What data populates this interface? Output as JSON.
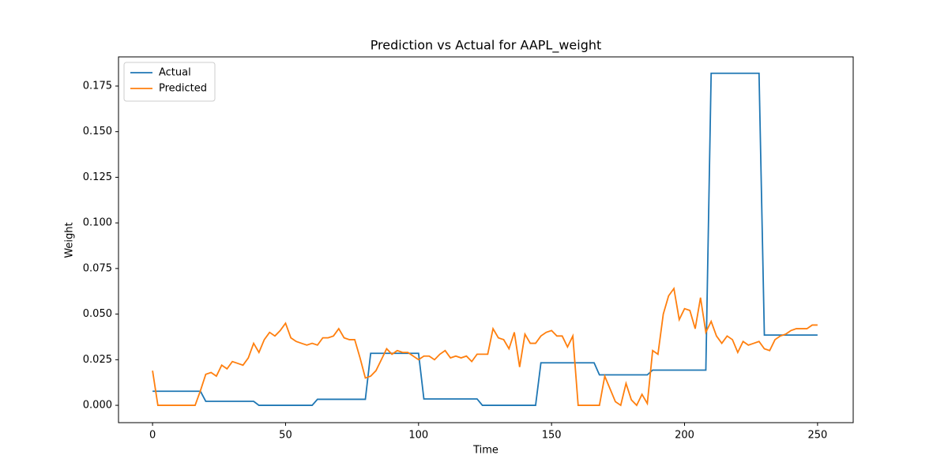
{
  "chart_data": {
    "type": "line",
    "title": "Prediction vs Actual for AAPL_weight",
    "x_label": "Time",
    "y_label": "Weight",
    "x": [
      0,
      2,
      4,
      6,
      8,
      10,
      12,
      14,
      16,
      18,
      20,
      22,
      24,
      26,
      28,
      30,
      32,
      34,
      36,
      38,
      40,
      42,
      44,
      46,
      48,
      50,
      52,
      54,
      56,
      58,
      60,
      62,
      64,
      66,
      68,
      70,
      72,
      74,
      76,
      78,
      80,
      82,
      84,
      86,
      88,
      90,
      92,
      94,
      96,
      98,
      100,
      102,
      104,
      106,
      108,
      110,
      112,
      114,
      116,
      118,
      120,
      122,
      124,
      126,
      128,
      130,
      132,
      134,
      136,
      138,
      140,
      142,
      144,
      146,
      148,
      150,
      152,
      154,
      156,
      158,
      160,
      162,
      164,
      166,
      168,
      170,
      172,
      174,
      176,
      178,
      180,
      182,
      184,
      186,
      188,
      190,
      192,
      194,
      196,
      198,
      200,
      202,
      204,
      206,
      208,
      210,
      212,
      214,
      216,
      218,
      220,
      222,
      224,
      226,
      228,
      230,
      232,
      234,
      236,
      238,
      240,
      242,
      244,
      246,
      248,
      250
    ],
    "series": [
      {
        "name": "Actual",
        "color": "#1f77b4",
        "values": [
          0.0077,
          0.0077,
          0.0077,
          0.0077,
          0.0077,
          0.0077,
          0.0077,
          0.0077,
          0.0077,
          0.0077,
          0.0022,
          0.0022,
          0.0022,
          0.0022,
          0.0022,
          0.0022,
          0.0022,
          0.0022,
          0.0022,
          0.0022,
          0,
          0,
          0,
          0,
          0,
          0,
          0,
          0,
          0,
          0,
          0,
          0.0033,
          0.0033,
          0.0033,
          0.0033,
          0.0033,
          0.0033,
          0.0033,
          0.0033,
          0.0033,
          0.0033,
          0.0285,
          0.0285,
          0.0285,
          0.0285,
          0.0285,
          0.0285,
          0.0285,
          0.0285,
          0.0285,
          0.0285,
          0.0035,
          0.0035,
          0.0035,
          0.0035,
          0.0035,
          0.0035,
          0.0035,
          0.0035,
          0.0035,
          0.0035,
          0.0035,
          0,
          0,
          0,
          0,
          0,
          0,
          0,
          0,
          0,
          0,
          0,
          0.0233,
          0.0233,
          0.0233,
          0.0233,
          0.0233,
          0.0233,
          0.0233,
          0.0233,
          0.0233,
          0.0233,
          0.0233,
          0.0167,
          0.0167,
          0.0167,
          0.0167,
          0.0167,
          0.0167,
          0.0167,
          0.0167,
          0.0167,
          0.0167,
          0.0193,
          0.0193,
          0.0193,
          0.0193,
          0.0193,
          0.0193,
          0.0193,
          0.0193,
          0.0193,
          0.0193,
          0.0193,
          0.182,
          0.182,
          0.182,
          0.182,
          0.182,
          0.182,
          0.182,
          0.182,
          0.182,
          0.182,
          0.0385,
          0.0385,
          0.0385,
          0.0385,
          0.0385,
          0.0385,
          0.0385,
          0.0385,
          0.0385,
          0.0385,
          0.0385
        ]
      },
      {
        "name": "Predicted",
        "color": "#ff7f0e",
        "values": [
          0.019,
          0,
          0,
          0,
          0,
          0,
          0,
          0,
          0,
          0.008,
          0.017,
          0.018,
          0.016,
          0.022,
          0.02,
          0.024,
          0.023,
          0.022,
          0.026,
          0.034,
          0.029,
          0.036,
          0.04,
          0.038,
          0.041,
          0.045,
          0.037,
          0.035,
          0.034,
          0.033,
          0.034,
          0.033,
          0.037,
          0.037,
          0.038,
          0.042,
          0.037,
          0.036,
          0.036,
          0.026,
          0.015,
          0.016,
          0.019,
          0.025,
          0.031,
          0.028,
          0.03,
          0.029,
          0.029,
          0.027,
          0.025,
          0.027,
          0.027,
          0.025,
          0.028,
          0.03,
          0.026,
          0.027,
          0.026,
          0.027,
          0.024,
          0.028,
          0.028,
          0.028,
          0.042,
          0.037,
          0.036,
          0.031,
          0.04,
          0.021,
          0.039,
          0.034,
          0.034,
          0.038,
          0.04,
          0.041,
          0.038,
          0.038,
          0.032,
          0.038,
          0,
          0,
          0,
          0,
          0,
          0.016,
          0.009,
          0.002,
          0,
          0.012,
          0.003,
          0,
          0.006,
          0.001,
          0.03,
          0.028,
          0.05,
          0.06,
          0.064,
          0.047,
          0.053,
          0.052,
          0.042,
          0.059,
          0.04,
          0.046,
          0.038,
          0.034,
          0.038,
          0.036,
          0.029,
          0.035,
          0.033,
          0.034,
          0.035,
          0.031,
          0.03,
          0.036,
          0.038,
          0.039,
          0.041,
          0.042,
          0.042,
          0.042,
          0.044,
          0.044
        ]
      }
    ],
    "xlim": [
      -12.8,
      263.4
    ],
    "ylim": [
      -0.0095,
      0.191
    ],
    "xticks": [
      0,
      50,
      100,
      150,
      200,
      250
    ],
    "yticks": [
      {
        "value": 0,
        "label": "0.000"
      },
      {
        "value": 0.025,
        "label": "0.025"
      },
      {
        "value": 0.05,
        "label": "0.050"
      },
      {
        "value": 0.075,
        "label": "0.075"
      },
      {
        "value": 0.1,
        "label": "0.100"
      },
      {
        "value": 0.125,
        "label": "0.125"
      },
      {
        "value": 0.15,
        "label": "0.150"
      },
      {
        "value": 0.175,
        "label": "0.175"
      }
    ],
    "legend": "upper left"
  }
}
